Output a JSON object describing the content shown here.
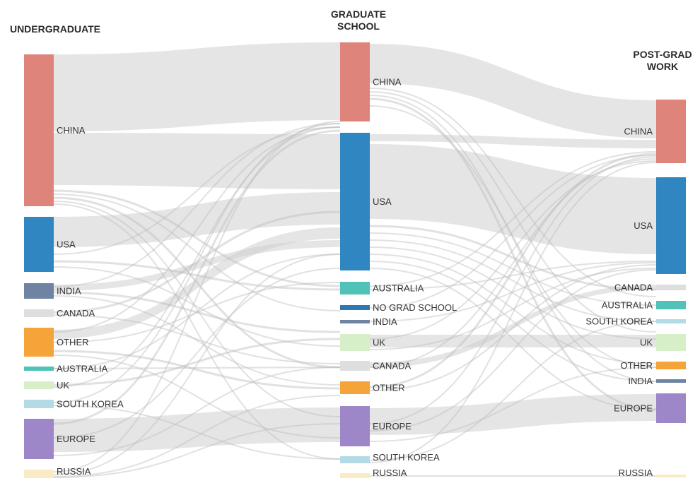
{
  "columns": [
    {
      "title_lines": [
        "UNDERGRADUATE"
      ]
    },
    {
      "title_lines": [
        "GRADUATE",
        "SCHOOL"
      ]
    },
    {
      "title_lines": [
        "POST-GRAD",
        "WORK"
      ]
    }
  ],
  "colors": {
    "china": "#df847a",
    "usa": "#2f86c0",
    "india": "#6f84a3",
    "canada": "#dedede",
    "other": "#f5a43a",
    "australia": "#51c2b8",
    "uk": "#d6efc9",
    "south_korea": "#b3dbe6",
    "europe": "#9d87c9",
    "russia": "#fbeac6",
    "no_grad": "#2b78b4",
    "link": "#cfcfcf"
  },
  "nodes": {
    "undergraduate": [
      {
        "id": "u-china",
        "label": "CHINA",
        "color": "china"
      },
      {
        "id": "u-usa",
        "label": "USA",
        "color": "usa"
      },
      {
        "id": "u-india",
        "label": "INDIA",
        "color": "india"
      },
      {
        "id": "u-canada",
        "label": "CANADA",
        "color": "canada"
      },
      {
        "id": "u-other",
        "label": "OTHER",
        "color": "other"
      },
      {
        "id": "u-australia",
        "label": "AUSTRALIA",
        "color": "australia"
      },
      {
        "id": "u-uk",
        "label": "UK",
        "color": "uk"
      },
      {
        "id": "u-south-korea",
        "label": "SOUTH KOREA",
        "color": "south_korea"
      },
      {
        "id": "u-europe",
        "label": "EUROPE",
        "color": "europe"
      },
      {
        "id": "u-russia",
        "label": "RUSSIA",
        "color": "russia"
      }
    ],
    "graduate": [
      {
        "id": "g-china",
        "label": "CHINA",
        "color": "china"
      },
      {
        "id": "g-usa",
        "label": "USA",
        "color": "usa"
      },
      {
        "id": "g-australia",
        "label": "AUSTRALIA",
        "color": "australia"
      },
      {
        "id": "g-no-grad",
        "label": "NO GRAD SCHOOL",
        "color": "no_grad"
      },
      {
        "id": "g-india",
        "label": "INDIA",
        "color": "india"
      },
      {
        "id": "g-uk",
        "label": "UK",
        "color": "uk"
      },
      {
        "id": "g-canada",
        "label": "CANADA",
        "color": "canada"
      },
      {
        "id": "g-other",
        "label": "OTHER",
        "color": "other"
      },
      {
        "id": "g-europe",
        "label": "EUROPE",
        "color": "europe"
      },
      {
        "id": "g-south-korea",
        "label": "SOUTH KOREA",
        "color": "south_korea"
      },
      {
        "id": "g-russia",
        "label": "RUSSIA",
        "color": "russia"
      }
    ],
    "postgrad": [
      {
        "id": "p-china",
        "label": "CHINA",
        "color": "china"
      },
      {
        "id": "p-usa",
        "label": "USA",
        "color": "usa"
      },
      {
        "id": "p-canada",
        "label": "CANADA",
        "color": "canada"
      },
      {
        "id": "p-australia",
        "label": "AUSTRALIA",
        "color": "australia"
      },
      {
        "id": "p-south-korea",
        "label": "SOUTH KOREA",
        "color": "south_korea"
      },
      {
        "id": "p-uk",
        "label": "UK",
        "color": "uk"
      },
      {
        "id": "p-other",
        "label": "OTHER",
        "color": "other"
      },
      {
        "id": "p-india",
        "label": "INDIA",
        "color": "india"
      },
      {
        "id": "p-europe",
        "label": "EUROPE",
        "color": "europe"
      },
      {
        "id": "p-russia",
        "label": "RUSSIA",
        "color": "russia"
      }
    ]
  }
}
